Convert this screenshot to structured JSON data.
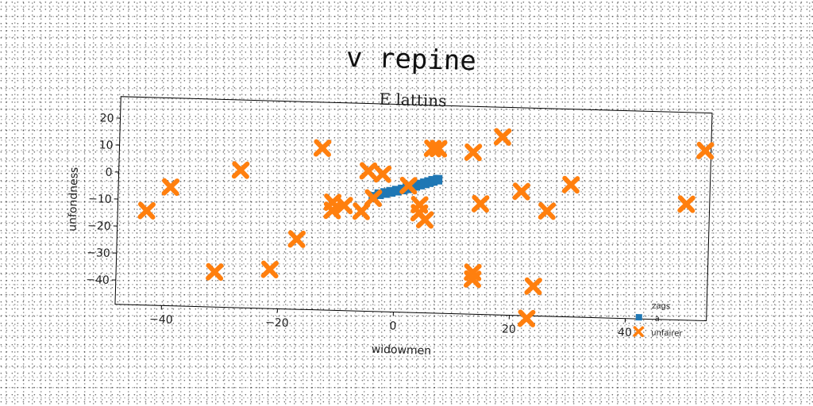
{
  "chart_data": {
    "type": "scatter",
    "title": "v repine",
    "subtitle": "E lattins",
    "xlabel": "widowmen",
    "ylabel": "unfondness",
    "xlim": [
      -48,
      54
    ],
    "ylim": [
      -49,
      28
    ],
    "xticks": [
      -40,
      -20,
      0,
      20,
      40
    ],
    "yticks": [
      20,
      10,
      0,
      -10,
      -20,
      -30,
      -40
    ],
    "grid": false,
    "legend": {
      "title": "zags",
      "placement": "lower-right"
    },
    "colors": {
      "a": "#1f77b4",
      "unfairer": "#ff7f0e"
    },
    "series": [
      {
        "name": "a",
        "marker": "square",
        "points": [
          [
            -4,
            -6.5
          ],
          [
            -3,
            -5.5
          ],
          [
            -2,
            -5
          ],
          [
            -1,
            -4.5
          ],
          [
            0,
            -4
          ],
          [
            1,
            -3.5
          ],
          [
            1.8,
            -3
          ],
          [
            2.5,
            -2.5
          ],
          [
            3.2,
            -2
          ],
          [
            4,
            -1.5
          ],
          [
            4.8,
            -1
          ],
          [
            5.5,
            -0.5
          ],
          [
            6.2,
            0
          ],
          [
            7,
            0.5
          ]
        ]
      },
      {
        "name": "unfairer",
        "marker": "x",
        "points": [
          [
            -43,
            -14
          ],
          [
            -39,
            -5
          ],
          [
            -31,
            -36
          ],
          [
            -27,
            2
          ],
          [
            -21.5,
            -34.5
          ],
          [
            -17,
            -23
          ],
          [
            -13,
            11
          ],
          [
            -11,
            -9
          ],
          [
            -11,
            -12
          ],
          [
            -9,
            -10
          ],
          [
            -6,
            -12
          ],
          [
            -5,
            3
          ],
          [
            -4,
            -7
          ],
          [
            -2.5,
            2
          ],
          [
            2,
            -2
          ],
          [
            4,
            -9
          ],
          [
            4,
            -12
          ],
          [
            5,
            -14.5
          ],
          [
            6,
            12
          ],
          [
            7,
            12
          ],
          [
            13,
            11
          ],
          [
            13.5,
            -33.5
          ],
          [
            13.5,
            -36
          ],
          [
            14.5,
            -8
          ],
          [
            18,
            17
          ],
          [
            21.5,
            -3
          ],
          [
            23,
            -50
          ],
          [
            24,
            -38
          ],
          [
            26,
            -10
          ],
          [
            30,
            0
          ],
          [
            50,
            -6
          ],
          [
            53,
            14
          ]
        ]
      }
    ]
  }
}
